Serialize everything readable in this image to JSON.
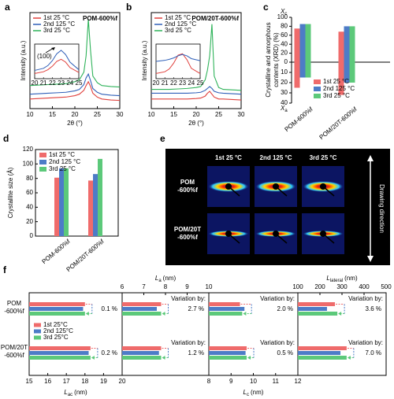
{
  "chart_data": [
    {
      "type": "line",
      "panel": "a",
      "title": "POM-600%f",
      "xlabel": "2θ (°)",
      "ylabel": "Intensity (a.u.)",
      "xlim": [
        10,
        30
      ],
      "xticks": [
        10,
        15,
        20,
        25,
        30
      ],
      "ylim": [
        0,
        10
      ],
      "x": [
        10,
        12,
        14,
        16,
        18,
        20,
        21,
        22,
        22.5,
        23,
        23.5,
        24,
        25,
        26,
        28,
        30
      ],
      "series": [
        {
          "name": "1st 25 °C",
          "color": "#e0403c",
          "values": [
            1.0,
            1.05,
            1.1,
            1.15,
            1.2,
            1.35,
            1.5,
            1.9,
            2.4,
            2.8,
            2.3,
            1.6,
            1.2,
            1.0,
            0.9,
            0.85
          ]
        },
        {
          "name": "2nd 125 °C",
          "color": "#2f5fb8",
          "values": [
            1.5,
            1.55,
            1.6,
            1.65,
            1.7,
            1.85,
            2.0,
            2.5,
            3.2,
            3.6,
            2.9,
            2.1,
            1.7,
            1.5,
            1.4,
            1.35
          ]
        },
        {
          "name": "3rd 25 °C",
          "color": "#2fb35a",
          "values": [
            2.4,
            2.45,
            2.5,
            2.55,
            2.6,
            2.8,
            3.0,
            3.8,
            5.5,
            9.3,
            6.0,
            3.4,
            2.7,
            2.4,
            2.3,
            2.25
          ]
        }
      ],
      "inset": {
        "xlim": [
          20,
          25
        ],
        "xticks": [
          20,
          21,
          22,
          23,
          24,
          25
        ],
        "ylim": [
          0,
          10
        ],
        "x": [
          20,
          21,
          21.5,
          22,
          22.5,
          23,
          23.5,
          24,
          25
        ],
        "annotation": "(100)",
        "series": [
          {
            "color": "#e0403c",
            "values": [
              1.5,
              2.0,
              2.6,
              3.6,
              5.0,
              5.6,
              4.8,
              3.2,
              1.8
            ]
          },
          {
            "color": "#2f5fb8",
            "values": [
              2.4,
              3.0,
              3.8,
              5.2,
              7.2,
              8.2,
              7.0,
              4.8,
              2.6
            ]
          }
        ]
      }
    },
    {
      "type": "line",
      "panel": "b",
      "title": "POM/20T-600%f",
      "xlabel": "2θ (°)",
      "ylabel": "Intensity (a.u.)",
      "xlim": [
        10,
        30
      ],
      "xticks": [
        10,
        15,
        20,
        25,
        30
      ],
      "ylim": [
        0,
        10
      ],
      "x": [
        10,
        12,
        14,
        16,
        18,
        20,
        21,
        22,
        22.5,
        23,
        23.5,
        24,
        25,
        26,
        28,
        30
      ],
      "series": [
        {
          "name": "1st 25 °C",
          "color": "#e0403c",
          "values": [
            1.0,
            1.0,
            1.0,
            1.0,
            1.0,
            1.05,
            1.1,
            1.3,
            1.6,
            1.8,
            1.5,
            1.2,
            1.0,
            1.0,
            0.95,
            0.9
          ]
        },
        {
          "name": "2nd 125 °C",
          "color": "#2f5fb8",
          "values": [
            1.6,
            1.6,
            1.6,
            1.6,
            1.6,
            1.65,
            1.7,
            1.9,
            2.1,
            2.3,
            2.1,
            1.8,
            1.65,
            1.6,
            1.55,
            1.5
          ]
        },
        {
          "name": "3rd 25 °C",
          "color": "#2fb35a",
          "values": [
            2.0,
            2.0,
            2.0,
            2.05,
            2.1,
            2.2,
            2.3,
            3.0,
            4.0,
            5.5,
            8.8,
            3.4,
            2.2,
            2.0,
            1.95,
            1.9
          ]
        }
      ],
      "inset": {
        "xlim": [
          20,
          25
        ],
        "xticks": [
          20,
          21,
          22,
          23,
          24,
          25
        ],
        "ylim": [
          0,
          10
        ],
        "x": [
          20,
          21,
          21.5,
          22,
          22.5,
          23,
          23.5,
          24,
          25
        ],
        "series": [
          {
            "color": "#e0403c",
            "values": [
              1.5,
              2.0,
              2.8,
              4.5,
              6.8,
              7.2,
              5.5,
              3.0,
              1.5
            ]
          },
          {
            "color": "#2f5fb8",
            "values": [
              5.0,
              5.3,
              5.6,
              6.0,
              6.6,
              7.0,
              6.6,
              5.8,
              5.2
            ]
          }
        ]
      }
    },
    {
      "type": "bar_split",
      "panel": "c",
      "ylabel": [
        "Crystalline and amorphous",
        "contents (XRD) (%)"
      ],
      "top_symbol": [
        "X",
        "c"
      ],
      "bottom_symbol": [
        "X",
        "a"
      ],
      "categories": [
        "POM-600%f",
        "POM/20T-600%f"
      ],
      "ylim": [
        0,
        100
      ],
      "yticks": [
        0,
        20,
        40,
        60,
        80,
        100
      ],
      "y2lim": [
        0,
        40
      ],
      "y2ticks": [
        10,
        20,
        30,
        40
      ],
      "series": [
        {
          "name": "1st 25 °C",
          "color": "#ef6b6b",
          "values": [
            75,
            68
          ],
          "amorphous_values": [
            25,
            32
          ]
        },
        {
          "name": "2nd 125 °C",
          "color": "#4d7cc7",
          "values": [
            85,
            80
          ],
          "amorphous_values": [
            15,
            20
          ]
        },
        {
          "name": "3rd 25 °C",
          "color": "#5cc97a",
          "values": [
            85,
            80
          ],
          "amorphous_values": [
            15,
            20
          ]
        }
      ]
    },
    {
      "type": "bar",
      "panel": "d",
      "ylabel": "Crystallite size (Å)",
      "categories": [
        "POM-600%f",
        "POM/20T-600%f"
      ],
      "ylim": [
        0,
        120
      ],
      "yticks": [
        0,
        20,
        40,
        60,
        80,
        100,
        120
      ],
      "series": [
        {
          "name": "1st 25 °C",
          "color": "#ef6b6b",
          "values": [
            81,
            77
          ]
        },
        {
          "name": "2nd 125 °C",
          "color": "#4d7cc7",
          "values": [
            94,
            86
          ]
        },
        {
          "name": "3rd 25 °C",
          "color": "#5cc97a",
          "values": [
            94,
            107
          ]
        }
      ]
    },
    {
      "type": "image_grid",
      "panel": "e",
      "columns": [
        "1st 25 °C",
        "2nd 125 °C",
        "3rd 25 °C"
      ],
      "rows": [
        [
          "POM",
          "-600%f"
        ],
        [
          "POM/20T",
          "-600%f"
        ]
      ],
      "side_label": "Drawing direction"
    },
    {
      "type": "hbar_panels",
      "panel": "f",
      "groups": [
        [
          "POM",
          "-600%f"
        ],
        [
          "POM/20T",
          "-600%f"
        ]
      ],
      "series": [
        {
          "name": "1st 25°C",
          "color": "#ef6b6b"
        },
        {
          "name": "2nd 125°C",
          "color": "#4d7cc7"
        },
        {
          "name": "3rd  25°C",
          "color": "#5cc97a"
        }
      ],
      "panels": [
        {
          "axis": "bottom",
          "label": [
            "L",
            "ac",
            "(nm)"
          ],
          "xlim": [
            15,
            20
          ],
          "xticks": [
            15,
            16,
            17,
            18,
            19,
            20
          ],
          "values": [
            [
              18.0,
              17.9,
              18.0
            ],
            [
              18.3,
              18.2,
              18.3
            ]
          ],
          "variation": [
            "0.1 %",
            "0.2 %"
          ]
        },
        {
          "axis": "top",
          "label": [
            "L",
            "a",
            "(nm)"
          ],
          "xlim": [
            6,
            10
          ],
          "xticks": [
            6,
            7,
            8,
            9,
            10
          ],
          "values": [
            [
              7.8,
              7.6,
              7.8
            ],
            [
              7.8,
              7.7,
              7.8
            ]
          ],
          "variation_label": "Variation by:",
          "variation": [
            "2.7 %",
            "1.2 %"
          ]
        },
        {
          "axis": "bottom",
          "label": [
            "L",
            "c",
            "(nm)"
          ],
          "xlim": [
            8,
            12
          ],
          "xticks": [
            8,
            9,
            10,
            11,
            12
          ],
          "values": [
            [
              9.4,
              9.6,
              9.5
            ],
            [
              9.7,
              9.65,
              9.7
            ]
          ],
          "variation_label": "Variation by:",
          "variation": [
            "2.0 %",
            "0.5 %"
          ]
        },
        {
          "axis": "top",
          "label": [
            "L",
            "lateral",
            "(nm)"
          ],
          "xlim": [
            100,
            500
          ],
          "xticks": [
            100,
            200,
            300,
            400,
            500
          ],
          "values": [
            [
              268,
              232,
              279
            ],
            [
              321,
              293,
              321
            ]
          ],
          "variation_label": "Variation by:",
          "variation": [
            "3.6 %",
            "7.0 %"
          ]
        }
      ]
    }
  ]
}
